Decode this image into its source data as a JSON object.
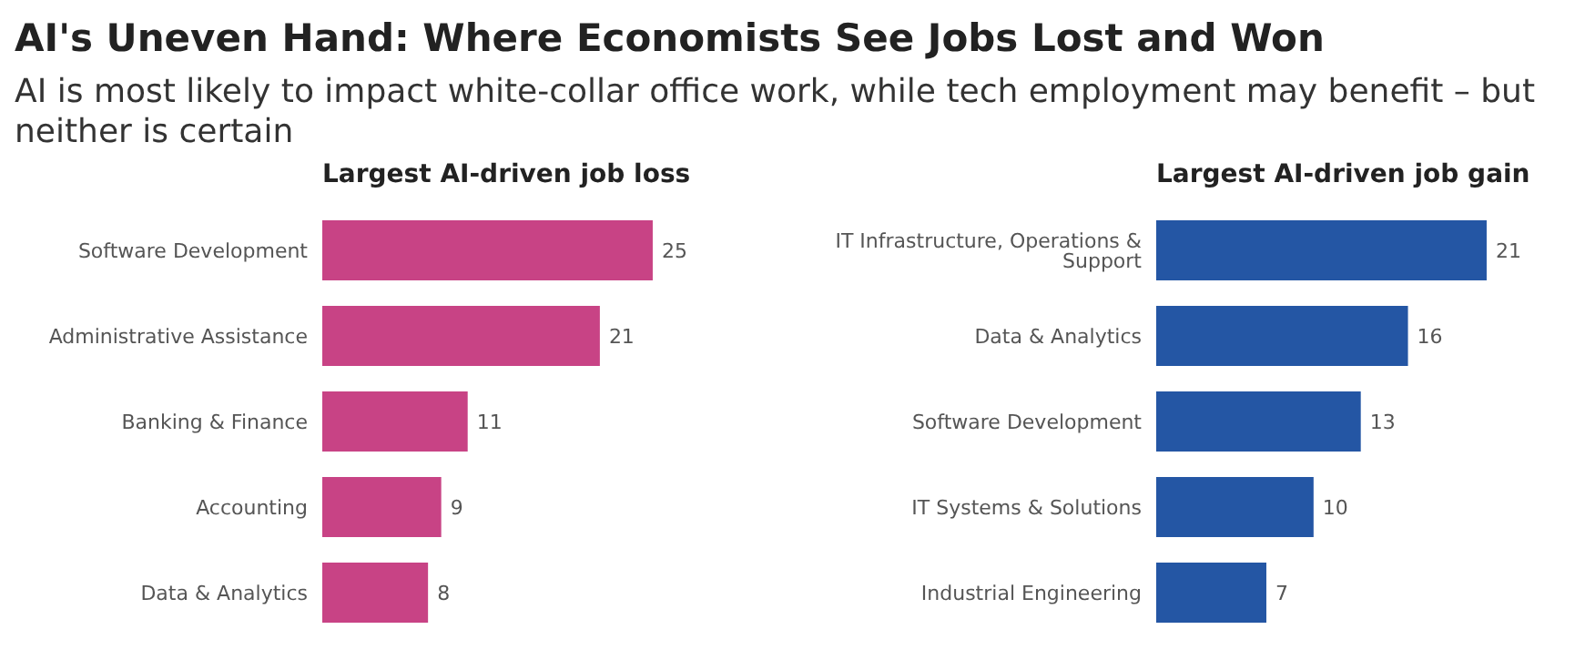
{
  "chart_data": [
    {
      "type": "other",
      "title": "AI's Uneven Hand: Where Economists See Jobs Lost and Won",
      "subtitle": "AI is most likely to impact white-collar office work, while tech employment may benefit – but neither is certain"
    },
    {
      "type": "bar",
      "orientation": "horizontal",
      "title": "Largest AI-driven job loss",
      "categories": [
        "Software Development",
        "Administrative Assistance",
        "Banking & Finance",
        "Accounting",
        "Data & Analytics"
      ],
      "values": [
        25,
        21,
        11,
        9,
        8
      ],
      "color": "#c84385",
      "tick_labels": "y",
      "data_labels": true
    },
    {
      "type": "bar",
      "orientation": "horizontal",
      "title": "Largest AI-driven job gain",
      "categories": [
        "IT Infrastructure, Operations & Support",
        "Data & Analytics",
        "Software Development",
        "IT Systems & Solutions",
        "Industrial Engineering"
      ],
      "values": [
        21,
        16,
        13,
        10,
        7
      ],
      "color": "#2456a4",
      "tick_labels": "y",
      "data_labels": true
    }
  ]
}
